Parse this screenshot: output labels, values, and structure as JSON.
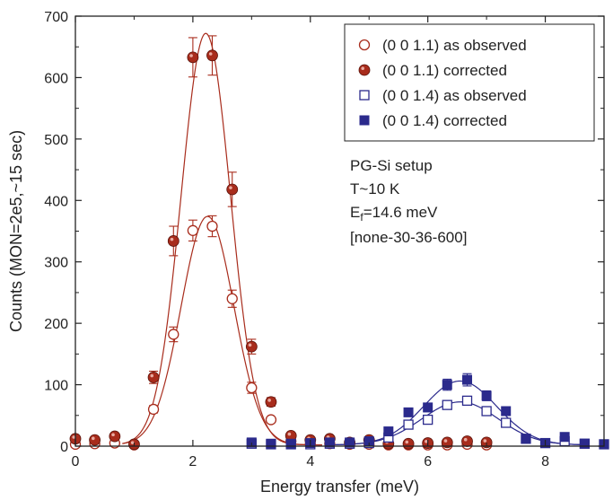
{
  "chart_data": {
    "type": "scatter",
    "xlabel": "Energy transfer (meV)",
    "ylabel": "Counts (MON=2e5,~15 sec)",
    "xlim": [
      0,
      9
    ],
    "ylim": [
      0,
      700
    ],
    "xticks": [
      0,
      2,
      4,
      6,
      8
    ],
    "yticks": [
      0,
      100,
      200,
      300,
      400,
      500,
      600,
      700
    ],
    "grid": false,
    "legend_position": "top-right",
    "colors": {
      "red": "#a82c1c",
      "blue": "#2b2a8c"
    },
    "series": [
      {
        "name": "(0 0 1.1) as observed",
        "marker": "open-circle",
        "color": "#a82c1c",
        "points": [
          [
            0.0,
            3,
            0
          ],
          [
            0.33,
            4,
            0
          ],
          [
            0.67,
            5,
            0
          ],
          [
            1.0,
            2,
            0
          ],
          [
            1.33,
            60,
            6
          ],
          [
            1.67,
            182,
            12
          ],
          [
            2.0,
            351,
            17
          ],
          [
            2.33,
            358,
            17
          ],
          [
            2.67,
            240,
            14
          ],
          [
            3.0,
            95,
            9
          ],
          [
            3.33,
            43,
            0
          ],
          [
            3.67,
            8,
            0
          ],
          [
            4.0,
            4,
            0
          ],
          [
            4.33,
            4,
            0
          ],
          [
            4.67,
            3,
            0
          ],
          [
            5.0,
            3,
            0
          ],
          [
            5.33,
            2,
            0
          ],
          [
            5.67,
            2,
            0
          ],
          [
            6.0,
            2,
            0
          ],
          [
            6.33,
            2,
            0
          ],
          [
            6.67,
            3,
            0
          ],
          [
            7.0,
            2,
            0
          ]
        ]
      },
      {
        "name": "(0 0 1.1) corrected",
        "marker": "filled-circle",
        "color": "#a82c1c",
        "points": [
          [
            0.0,
            12,
            0
          ],
          [
            0.33,
            10,
            0
          ],
          [
            0.67,
            16,
            0
          ],
          [
            1.0,
            3,
            0
          ],
          [
            1.33,
            112,
            10
          ],
          [
            1.67,
            334,
            24
          ],
          [
            2.0,
            633,
            32
          ],
          [
            2.33,
            636,
            32
          ],
          [
            2.67,
            418,
            28
          ],
          [
            3.0,
            162,
            12
          ],
          [
            3.33,
            72,
            7
          ],
          [
            3.67,
            17,
            0
          ],
          [
            4.0,
            10,
            0
          ],
          [
            4.33,
            12,
            0
          ],
          [
            4.67,
            6,
            0
          ],
          [
            5.0,
            10,
            0
          ],
          [
            5.33,
            4,
            0
          ],
          [
            5.67,
            4,
            0
          ],
          [
            6.0,
            5,
            0
          ],
          [
            6.33,
            6,
            0
          ],
          [
            6.67,
            8,
            0
          ],
          [
            7.0,
            6,
            0
          ]
        ]
      },
      {
        "name": "(0 0 1.4) as observed",
        "marker": "open-square",
        "color": "#2b2a8c",
        "points": [
          [
            3.0,
            4,
            0
          ],
          [
            3.33,
            3,
            0
          ],
          [
            3.67,
            3,
            0
          ],
          [
            4.0,
            3,
            0
          ],
          [
            4.33,
            4,
            0
          ],
          [
            4.67,
            4,
            0
          ],
          [
            5.0,
            5,
            0
          ],
          [
            5.33,
            14,
            0
          ],
          [
            5.67,
            35,
            5
          ],
          [
            6.0,
            43,
            5
          ],
          [
            6.33,
            67,
            6
          ],
          [
            6.67,
            74,
            6
          ],
          [
            7.0,
            57,
            5
          ],
          [
            7.33,
            38,
            4
          ],
          [
            7.67,
            12,
            0
          ],
          [
            8.0,
            5,
            0
          ],
          [
            8.33,
            8,
            0
          ],
          [
            8.67,
            4,
            0
          ],
          [
            9.0,
            3,
            0
          ]
        ]
      },
      {
        "name": "(0 0 1.4) corrected",
        "marker": "filled-square",
        "color": "#2b2a8c",
        "points": [
          [
            3.0,
            6,
            0
          ],
          [
            3.33,
            4,
            0
          ],
          [
            3.67,
            4,
            0
          ],
          [
            4.0,
            5,
            0
          ],
          [
            4.33,
            6,
            0
          ],
          [
            4.67,
            6,
            0
          ],
          [
            5.0,
            8,
            0
          ],
          [
            5.33,
            24,
            0
          ],
          [
            5.67,
            55,
            6
          ],
          [
            6.0,
            63,
            7
          ],
          [
            6.33,
            100,
            9
          ],
          [
            6.67,
            108,
            10
          ],
          [
            7.0,
            82,
            8
          ],
          [
            7.33,
            57,
            6
          ],
          [
            7.67,
            12,
            0
          ],
          [
            8.0,
            5,
            0
          ],
          [
            8.33,
            15,
            0
          ],
          [
            8.67,
            4,
            0
          ],
          [
            9.0,
            3,
            0
          ]
        ]
      }
    ],
    "fits": [
      {
        "color": "#a82c1c",
        "amplitude": 670,
        "center": 2.22,
        "sigma": 0.42,
        "baseline": 2,
        "range": [
          0.8,
          4.2
        ]
      },
      {
        "color": "#a82c1c",
        "amplitude": 372,
        "center": 2.25,
        "sigma": 0.45,
        "baseline": 2,
        "range": [
          0.8,
          4.2
        ]
      },
      {
        "color": "#2b2a8c",
        "amplitude": 104,
        "center": 6.55,
        "sigma": 0.62,
        "baseline": 2,
        "range": [
          4.4,
          8.6
        ]
      },
      {
        "color": "#2b2a8c",
        "amplitude": 70,
        "center": 6.55,
        "sigma": 0.65,
        "baseline": 2,
        "range": [
          4.4,
          8.6
        ]
      }
    ],
    "annotation": {
      "line1": "PG-Si setup",
      "line2": "T~10 K",
      "line3_main": "E",
      "line3_sub": "f",
      "line3_rest": "=14.6 meV",
      "line4": "[none-30-36-600]"
    }
  }
}
